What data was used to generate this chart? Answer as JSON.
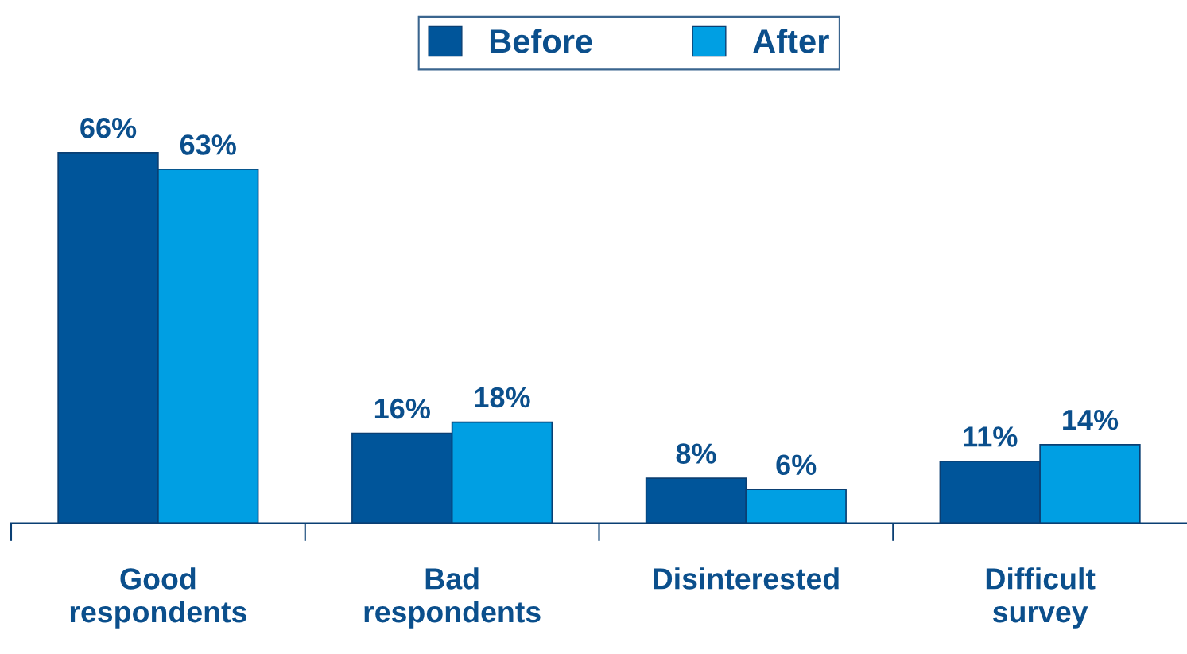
{
  "chart_data": {
    "type": "bar",
    "categories": [
      "Good respondents",
      "Bad respondents",
      "Disinterested",
      "Difficult survey"
    ],
    "series": [
      {
        "name": "Before",
        "color": "#00559a",
        "values": [
          66,
          16,
          8,
          11
        ],
        "value_labels": [
          "66%",
          "16%",
          "8%",
          "11%"
        ]
      },
      {
        "name": "After",
        "color": "#009fe3",
        "values": [
          63,
          18,
          6,
          14
        ],
        "value_labels": [
          "63%",
          "18%",
          "6%",
          "14%"
        ]
      }
    ],
    "legend": "top",
    "grid": false,
    "tick_labels": "x"
  }
}
